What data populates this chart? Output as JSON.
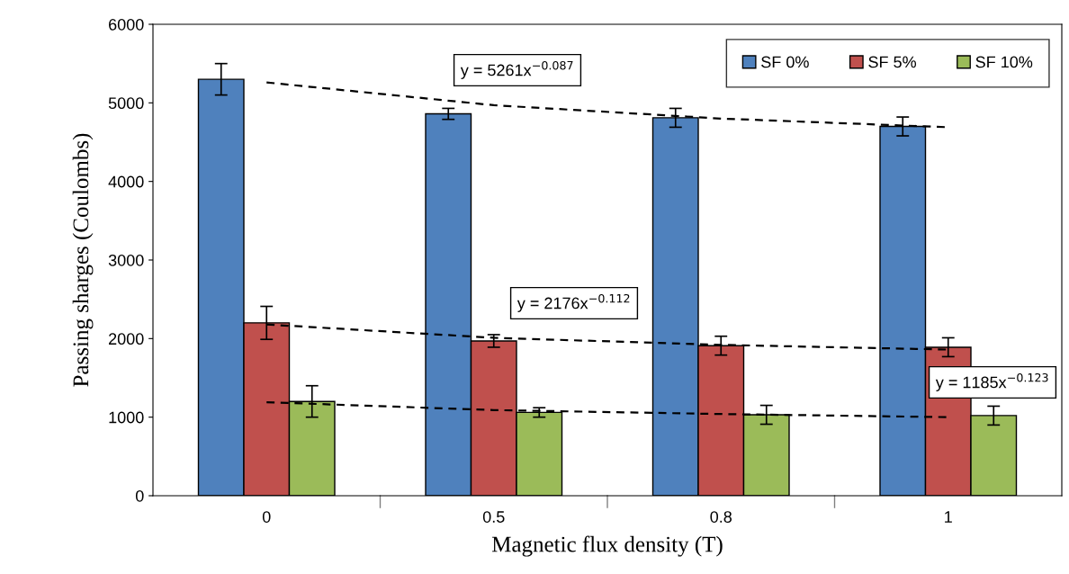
{
  "chart_data": {
    "type": "bar",
    "xlabel": "Magnetic flux density (T)",
    "ylabel": "Passing sharges (Coulombs)",
    "categories": [
      "0",
      "0.5",
      "0.8",
      "1"
    ],
    "series": [
      {
        "name": "SF 0%",
        "color": "#4f81bd",
        "values": [
          5300,
          4860,
          4810,
          4700
        ],
        "errors": [
          200,
          70,
          120,
          120
        ]
      },
      {
        "name": "SF 5%",
        "color": "#c0504d",
        "values": [
          2200,
          1970,
          1910,
          1890
        ],
        "errors": [
          210,
          80,
          120,
          120
        ]
      },
      {
        "name": "SF 10%",
        "color": "#9bbb59",
        "values": [
          1200,
          1060,
          1030,
          1020
        ],
        "errors": [
          200,
          60,
          120,
          120
        ]
      },
      {
        "type": "line",
        "color": "#000000",
        "line_style": "dashed",
        "marker": "none",
        "x": [
          "0",
          "0.5",
          "0.8",
          "1"
        ],
        "values": [
          5260,
          4970,
          4800,
          4690
        ]
      },
      {
        "type": "line",
        "color": "#000000",
        "line_style": "dashed",
        "marker": "none",
        "x": [
          "0",
          "0.5",
          "0.8",
          "1"
        ],
        "values": [
          2180,
          2010,
          1920,
          1860
        ]
      },
      {
        "type": "line",
        "color": "#000000",
        "line_style": "dashed",
        "marker": "none",
        "x": [
          "0",
          "0.5",
          "0.8",
          "1"
        ],
        "values": [
          1190,
          1090,
          1040,
          1000
        ]
      }
    ],
    "annotations": [
      "y = 5261x$^{−0.087}$",
      "y = 2176x$^{−0.112}$",
      "y = 1185x$^{−0.123}$"
    ],
    "ylim": [
      0,
      6000
    ],
    "yticks": [
      0,
      1000,
      2000,
      3000,
      4000,
      5000,
      6000
    ],
    "grid": false,
    "legend": "top right"
  }
}
